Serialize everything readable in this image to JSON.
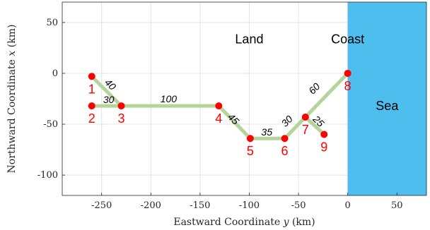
{
  "chart_data": {
    "type": "line",
    "xlabel_prefix": "Eastward Coordinate ",
    "xlabel_var": "y",
    "xlabel_suffix": " (km)",
    "ylabel_prefix": "Northward Coordinate ",
    "ylabel_var": "x",
    "ylabel_suffix": " (km)",
    "xlim": [
      -290,
      80
    ],
    "ylim": [
      -120,
      70
    ],
    "xticks": [
      -250,
      -200,
      -150,
      -100,
      -50,
      0,
      50
    ],
    "yticks": [
      50,
      0,
      -50,
      -100
    ],
    "xtick_labels": [
      "-250",
      "-200",
      "-150",
      "-100",
      "-50",
      "0",
      "50"
    ],
    "ytick_labels": [
      "50",
      "0",
      "-50",
      "-100"
    ],
    "grid": true,
    "sea": {
      "label": "Sea",
      "y_from": 0,
      "color": "#4dbeee"
    },
    "regions": [
      {
        "text": "Land",
        "y": -100,
        "x": 40
      },
      {
        "text": "Coast",
        "y": 0,
        "x": 40
      }
    ],
    "node_color": "#ff0000",
    "edge_color": "#b5d49b",
    "nodes": [
      {
        "id": "1",
        "y": -260,
        "x": -3
      },
      {
        "id": "2",
        "y": -260,
        "x": -32
      },
      {
        "id": "3",
        "y": -230,
        "x": -32
      },
      {
        "id": "4",
        "y": -131,
        "x": -32
      },
      {
        "id": "5",
        "y": -99,
        "x": -64
      },
      {
        "id": "6",
        "y": -64,
        "x": -64
      },
      {
        "id": "7",
        "y": -43,
        "x": -43
      },
      {
        "id": "8",
        "y": 0,
        "x": 0
      },
      {
        "id": "9",
        "y": -24,
        "x": -60
      }
    ],
    "edges": [
      {
        "from": "1",
        "to": "3",
        "length": "40"
      },
      {
        "from": "2",
        "to": "3",
        "length": "30"
      },
      {
        "from": "3",
        "to": "4",
        "length": "100"
      },
      {
        "from": "4",
        "to": "5",
        "length": "45"
      },
      {
        "from": "5",
        "to": "6",
        "length": "35"
      },
      {
        "from": "6",
        "to": "7",
        "length": "30"
      },
      {
        "from": "7",
        "to": "8",
        "length": "60"
      },
      {
        "from": "7",
        "to": "9",
        "length": "25"
      }
    ]
  }
}
